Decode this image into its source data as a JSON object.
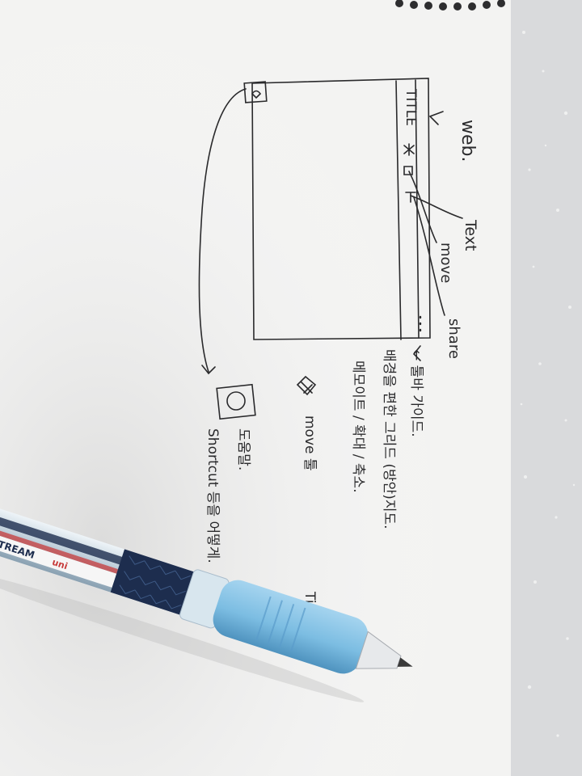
{
  "sketch": {
    "frame_title": "TITLE",
    "label_web": "web.",
    "label_text": "Text",
    "label_move": "move",
    "label_share": "share",
    "note_line_1": "← 툴바 가이드.",
    "note_line_2": "배경을 편한 그리드 (방안)지도.",
    "note_line_3": "메모이트 / 확대 / 축소.",
    "note_move": "move 툴",
    "note_title": "Title",
    "note_help_1": "도움말.",
    "note_help_2": "Shortcut 등을 어떻게."
  },
  "pen": {
    "brand": "JETSTREAM",
    "maker": "uni"
  },
  "colors": {
    "paper": "#f3f3f2",
    "ink": "#2a2a2c",
    "countertop": "#d9dadc",
    "pen_barrel": "#87c2e4",
    "pen_body": "#1d2d4e"
  }
}
